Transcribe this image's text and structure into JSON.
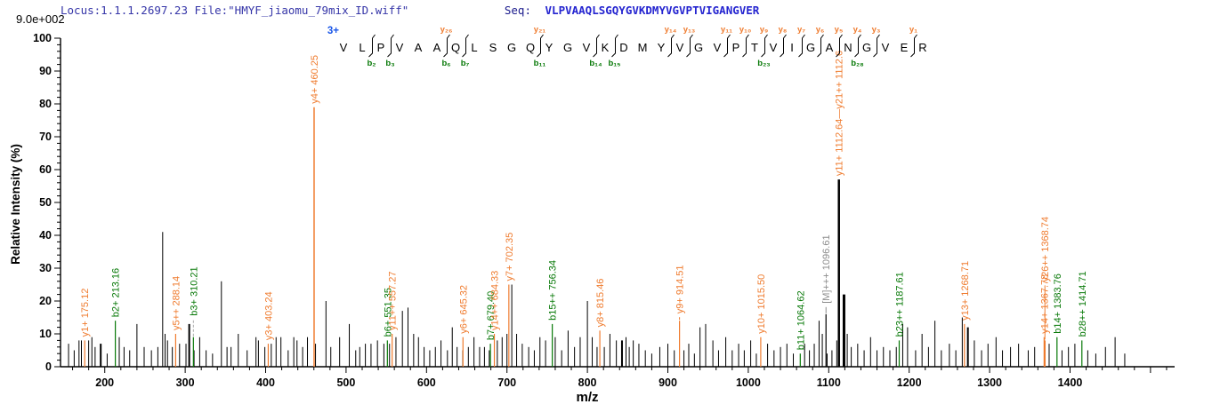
{
  "header": {
    "locus_file": "Locus:1.1.1.2697.23 File:\"HMYF_jiaomu_79mix_ID.wiff\"",
    "seq_label": "Seq:",
    "sequence": "VLPVAAQLSGQYGVKDMYVGVPTVIGANGVER",
    "max_intensity": "9.0e+002",
    "charge": "3+"
  },
  "colors": {
    "background": "#ffffff",
    "axis": "#000000",
    "ions": {
      "y": "#EF7B2E",
      "b": "#067806",
      "M": "#8C8C8C"
    },
    "header_locus": "#3636A8",
    "header_sequence": "#2424D0",
    "charge_blue": "#1A56E8",
    "dashed_leader": "#AAAAAA"
  },
  "chart_data": {
    "type": "bar",
    "subtype": "mass-spectrum",
    "title": "",
    "xlabel": "m/z",
    "ylabel": "Relative  Intensity (%)",
    "xlim": [
      145,
      1530
    ],
    "ylim": [
      0,
      100
    ],
    "x_ticks": {
      "major_start": 200,
      "major_end": 1400,
      "major_step": 100,
      "minor_step": 20
    },
    "y_ticks": {
      "major_step": 10,
      "minor_step": 2
    },
    "grid": false,
    "legend": "none",
    "sequence": "VLPVAAQLSGQYGVKDMYVGVPTVIGANGVER",
    "fragments": [
      {
        "after": 2,
        "b": 2
      },
      {
        "after": 3,
        "b": 3
      },
      {
        "after": 6,
        "b": 6,
        "y": 26
      },
      {
        "after": 7,
        "b": 7
      },
      {
        "after": 11,
        "b": 11,
        "y": 21
      },
      {
        "after": 14,
        "b": 14
      },
      {
        "after": 15,
        "b": 15
      },
      {
        "after": 18,
        "y": 14
      },
      {
        "after": 19,
        "y": 13
      },
      {
        "after": 21,
        "y": 11
      },
      {
        "after": 22,
        "y": 10
      },
      {
        "after": 23,
        "b": 23,
        "y": 9
      },
      {
        "after": 24,
        "y": 8
      },
      {
        "after": 25,
        "y": 7
      },
      {
        "after": 26,
        "y": 6
      },
      {
        "after": 27,
        "y": 5
      },
      {
        "after": 28,
        "b": 28,
        "y": 4
      },
      {
        "after": 29,
        "y": 3
      },
      {
        "after": 31,
        "y": 1
      }
    ],
    "peaks": [
      {
        "mz": 175.12,
        "i": 8,
        "ion": "y",
        "label": "y1+ 175.12"
      },
      {
        "mz": 213.16,
        "i": 14,
        "ion": "b",
        "label": "b2+ 213.16"
      },
      {
        "mz": 288.14,
        "i": 10,
        "ion": "y",
        "label": "y5++ 288.14"
      },
      {
        "mz": 310.21,
        "i": 9,
        "ion": "b",
        "label": "b3+ 310.21",
        "leader": 20,
        "dashed": true
      },
      {
        "mz": 403.24,
        "i": 7,
        "ion": "y",
        "label": "y3+ 403.24"
      },
      {
        "mz": 460.25,
        "i": 79,
        "ion": "y",
        "label": "y4+ 460.25",
        "w": 1.5
      },
      {
        "mz": 551.35,
        "i": 8,
        "ion": "b",
        "label": "b6+ 551.35"
      },
      {
        "mz": 557.27,
        "i": 10,
        "ion": "y",
        "label": "y11++ 557.27"
      },
      {
        "mz": 645.32,
        "i": 9,
        "ion": "y",
        "label": "y6+ 645.32"
      },
      {
        "mz": 679.4,
        "i": 7,
        "ion": "b",
        "label": "b7+ 679.40"
      },
      {
        "mz": 684.33,
        "i": 10,
        "ion": "y",
        "label": "y14++ 684.33"
      },
      {
        "mz": 702.35,
        "i": 25,
        "ion": "y",
        "label": "y7+ 702.35"
      },
      {
        "mz": 756.34,
        "i": 13,
        "ion": "b",
        "label": "b15++ 756.34"
      },
      {
        "mz": 815.46,
        "i": 11,
        "ion": "y",
        "label": "y8+ 815.46"
      },
      {
        "mz": 914.51,
        "i": 14,
        "ion": "y",
        "label": "y9+ 914.51",
        "leader": 4
      },
      {
        "mz": 1015.5,
        "i": 9,
        "ion": "y",
        "label": "y10+ 1015.50"
      },
      {
        "mz": 1064.62,
        "i": 4,
        "ion": "b",
        "label": "b11+ 1064.62"
      },
      {
        "mz": 1096.61,
        "i": 16,
        "ion": "M",
        "label": "[M]+++ 1096.61",
        "leader": 8,
        "black_peak": true
      },
      {
        "mz": 1112.64,
        "i": 57,
        "ion": "y",
        "label": "y11+ 1112.64",
        "label2": "y21++ 1112.6",
        "black_peak": true,
        "w": 2.5
      },
      {
        "mz": 1187.61,
        "i": 8,
        "ion": "b",
        "label": "b23++ 1187.61"
      },
      {
        "mz": 1268.71,
        "i": 13,
        "ion": "y",
        "label": "y13+ 1268.71"
      },
      {
        "mz": 1367.78,
        "i": 9,
        "ion": "y",
        "label": "y14+ 1367.78"
      },
      {
        "mz": 1368.74,
        "i": 8,
        "ion": "y",
        "label": "y26++ 1368.74",
        "leader": 62,
        "w": 1.5
      },
      {
        "mz": 1383.76,
        "i": 9,
        "ion": "b",
        "label": "b14+ 1383.76"
      },
      {
        "mz": 1414.71,
        "i": 8,
        "ion": "b",
        "label": "b28++ 1414.71"
      }
    ],
    "peaks_unlabeled": [
      [
        155,
        7
      ],
      [
        162,
        5
      ],
      [
        168,
        8
      ],
      [
        171,
        8
      ],
      [
        180,
        8
      ],
      [
        184,
        9
      ],
      [
        188,
        6
      ],
      [
        195,
        7,
        2
      ],
      [
        203,
        4
      ],
      [
        218,
        9
      ],
      [
        224,
        6
      ],
      [
        231,
        5
      ],
      [
        240,
        13
      ],
      [
        249,
        6
      ],
      [
        258,
        5
      ],
      [
        266,
        6
      ],
      [
        272,
        41
      ],
      [
        275,
        10
      ],
      [
        278,
        8
      ],
      [
        284,
        6
      ],
      [
        293,
        7
      ],
      [
        301,
        7
      ],
      [
        305,
        13,
        2
      ],
      [
        311,
        5
      ],
      [
        318,
        9
      ],
      [
        326,
        5
      ],
      [
        334,
        4
      ],
      [
        345,
        26
      ],
      [
        352,
        6
      ],
      [
        357,
        6
      ],
      [
        366,
        10
      ],
      [
        377,
        5
      ],
      [
        388,
        9
      ],
      [
        391,
        8
      ],
      [
        399,
        6
      ],
      [
        407,
        7
      ],
      [
        413,
        9
      ],
      [
        419,
        9
      ],
      [
        428,
        5
      ],
      [
        435,
        9
      ],
      [
        439,
        8
      ],
      [
        446,
        6
      ],
      [
        452,
        9
      ],
      [
        462,
        7
      ],
      [
        475,
        20
      ],
      [
        481,
        6
      ],
      [
        492,
        9
      ],
      [
        504,
        13
      ],
      [
        512,
        5
      ],
      [
        517,
        6
      ],
      [
        524,
        7
      ],
      [
        531,
        7
      ],
      [
        539,
        8
      ],
      [
        547,
        7
      ],
      [
        554,
        7
      ],
      [
        562,
        9
      ],
      [
        570,
        17
      ],
      [
        577,
        18
      ],
      [
        584,
        10
      ],
      [
        590,
        9
      ],
      [
        597,
        6
      ],
      [
        604,
        5
      ],
      [
        611,
        6
      ],
      [
        618,
        8
      ],
      [
        626,
        5
      ],
      [
        632,
        12
      ],
      [
        638,
        6
      ],
      [
        645,
        5
      ],
      [
        652,
        6
      ],
      [
        659,
        9
      ],
      [
        666,
        6
      ],
      [
        672,
        6
      ],
      [
        678,
        5
      ],
      [
        688,
        8
      ],
      [
        694,
        9
      ],
      [
        700,
        10
      ],
      [
        706,
        25
      ],
      [
        712,
        10
      ],
      [
        719,
        7
      ],
      [
        727,
        6
      ],
      [
        734,
        5
      ],
      [
        741,
        9
      ],
      [
        748,
        8
      ],
      [
        760,
        9
      ],
      [
        768,
        5
      ],
      [
        776,
        11
      ],
      [
        784,
        6
      ],
      [
        791,
        9
      ],
      [
        800,
        20
      ],
      [
        806,
        9
      ],
      [
        812,
        6
      ],
      [
        821,
        6
      ],
      [
        828,
        10
      ],
      [
        836,
        8
      ],
      [
        843,
        8,
        2
      ],
      [
        848,
        9
      ],
      [
        852,
        6
      ],
      [
        857,
        8
      ],
      [
        864,
        7
      ],
      [
        872,
        5
      ],
      [
        880,
        4
      ],
      [
        890,
        6
      ],
      [
        900,
        7
      ],
      [
        908,
        5
      ],
      [
        920,
        5
      ],
      [
        926,
        7
      ],
      [
        933,
        4
      ],
      [
        940,
        12
      ],
      [
        947,
        13
      ],
      [
        956,
        8
      ],
      [
        963,
        5
      ],
      [
        972,
        9
      ],
      [
        980,
        5
      ],
      [
        988,
        7
      ],
      [
        995,
        5
      ],
      [
        1003,
        8
      ],
      [
        1010,
        4
      ],
      [
        1024,
        7
      ],
      [
        1032,
        5
      ],
      [
        1040,
        6
      ],
      [
        1048,
        7
      ],
      [
        1056,
        4
      ],
      [
        1070,
        7
      ],
      [
        1076,
        5
      ],
      [
        1082,
        7
      ],
      [
        1088,
        14
      ],
      [
        1092,
        10
      ],
      [
        1098,
        4
      ],
      [
        1104,
        5
      ],
      [
        1110,
        8
      ],
      [
        1119,
        22,
        3
      ],
      [
        1123,
        10
      ],
      [
        1128,
        6
      ],
      [
        1136,
        7
      ],
      [
        1144,
        5
      ],
      [
        1152,
        9
      ],
      [
        1160,
        5
      ],
      [
        1168,
        6
      ],
      [
        1176,
        5
      ],
      [
        1184,
        6
      ],
      [
        1192,
        13
      ],
      [
        1198,
        12
      ],
      [
        1208,
        5
      ],
      [
        1216,
        10
      ],
      [
        1224,
        6
      ],
      [
        1232,
        14
      ],
      [
        1240,
        5
      ],
      [
        1250,
        7
      ],
      [
        1258,
        5
      ],
      [
        1266,
        15
      ],
      [
        1273,
        12,
        2
      ],
      [
        1281,
        8
      ],
      [
        1290,
        5
      ],
      [
        1298,
        7
      ],
      [
        1308,
        9
      ],
      [
        1316,
        5
      ],
      [
        1326,
        6
      ],
      [
        1336,
        7
      ],
      [
        1348,
        5
      ],
      [
        1356,
        6
      ],
      [
        1374,
        7
      ],
      [
        1390,
        5
      ],
      [
        1398,
        6
      ],
      [
        1406,
        7
      ],
      [
        1422,
        5
      ],
      [
        1432,
        4
      ],
      [
        1444,
        6
      ],
      [
        1456,
        9
      ],
      [
        1468,
        4
      ]
    ]
  }
}
